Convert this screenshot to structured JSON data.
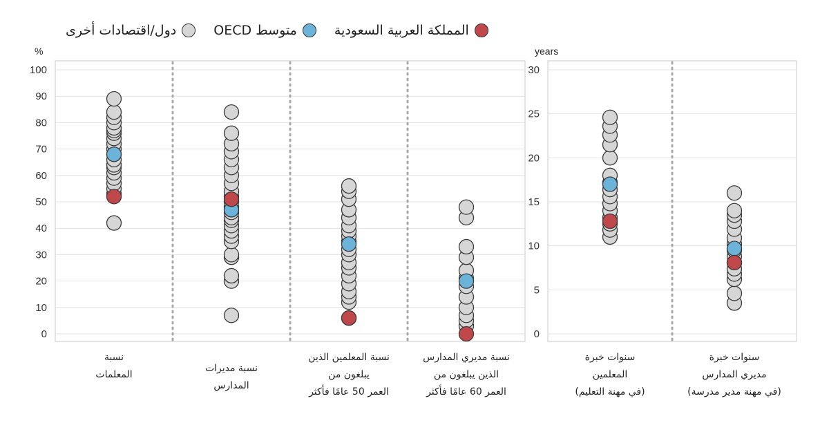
{
  "legend": {
    "items": [
      {
        "label": "المملكة العربية السعودية",
        "color": "#c0474a"
      },
      {
        "label": "متوسط OECD",
        "color": "#6bb3d9"
      },
      {
        "label": "دول/اقتصادات أخرى",
        "color": "#d6d6d6"
      }
    ]
  },
  "chart_data": [
    {
      "type": "scatter",
      "unit_label": "%",
      "ylim": [
        0,
        100
      ],
      "yticks": [
        0,
        10,
        20,
        30,
        40,
        50,
        60,
        70,
        80,
        90,
        100
      ],
      "grid": true,
      "categories": [
        {
          "label_lines": [
            "نسبة",
            "المعلمات"
          ],
          "others": [
            42,
            53,
            55,
            57,
            59,
            61,
            63,
            64,
            66,
            68,
            70,
            72,
            74,
            76,
            77,
            78,
            80,
            82,
            84,
            89
          ],
          "oecd": 68,
          "saudi": 52
        },
        {
          "label_lines": [
            "نسبة مديرات",
            "المدارس"
          ],
          "others": [
            7,
            20,
            22,
            29,
            30,
            35,
            37,
            39,
            41,
            43,
            44,
            46,
            48,
            50,
            52,
            54,
            57,
            60,
            63,
            66,
            69,
            72,
            76,
            84
          ],
          "oecd": 47,
          "saudi": 51
        },
        {
          "label_lines": [
            "نسبة المعلمين الذين",
            "يبلغون من",
            "العمر 50 عامًا فأكثر"
          ],
          "others": [
            6,
            12,
            14,
            16,
            19,
            22,
            25,
            27,
            30,
            32,
            35,
            37,
            39,
            41,
            44,
            47,
            51,
            54,
            56
          ],
          "oecd": 34,
          "saudi": 6
        },
        {
          "label_lines": [
            "نسبة مديري المدارس",
            "الذين يبلغون من",
            "العمر 60 عامًا فأكثر"
          ],
          "others": [
            3,
            5,
            7,
            10,
            14,
            18,
            21,
            24,
            29,
            33,
            44,
            48
          ],
          "oecd": 20,
          "saudi": 0
        }
      ]
    },
    {
      "type": "scatter",
      "unit_label": "years",
      "ylim": [
        0,
        30
      ],
      "yticks": [
        0,
        5,
        10,
        15,
        20,
        25,
        30
      ],
      "grid": true,
      "categories": [
        {
          "label_lines": [
            "سنوات خبرة",
            "المعلمين",
            "(في مهنة التعليم)"
          ],
          "others": [
            11,
            11.8,
            12.5,
            13.2,
            14,
            14.8,
            15.6,
            16.4,
            17.2,
            18,
            20,
            21.5,
            22.6,
            23.6,
            24.6
          ],
          "oecd": 17,
          "saudi": 12.8
        },
        {
          "label_lines": [
            "سنوات خبرة",
            "مديري المدارس",
            "(في مهنة مدير مدرسة)"
          ],
          "others": [
            3.5,
            4.6,
            6.2,
            6.8,
            7.4,
            8.1,
            8.8,
            9.5,
            10.2,
            10.9,
            11.9,
            12.8,
            13.5,
            14,
            16
          ],
          "oecd": 9.7,
          "saudi": 8.1
        }
      ]
    }
  ]
}
